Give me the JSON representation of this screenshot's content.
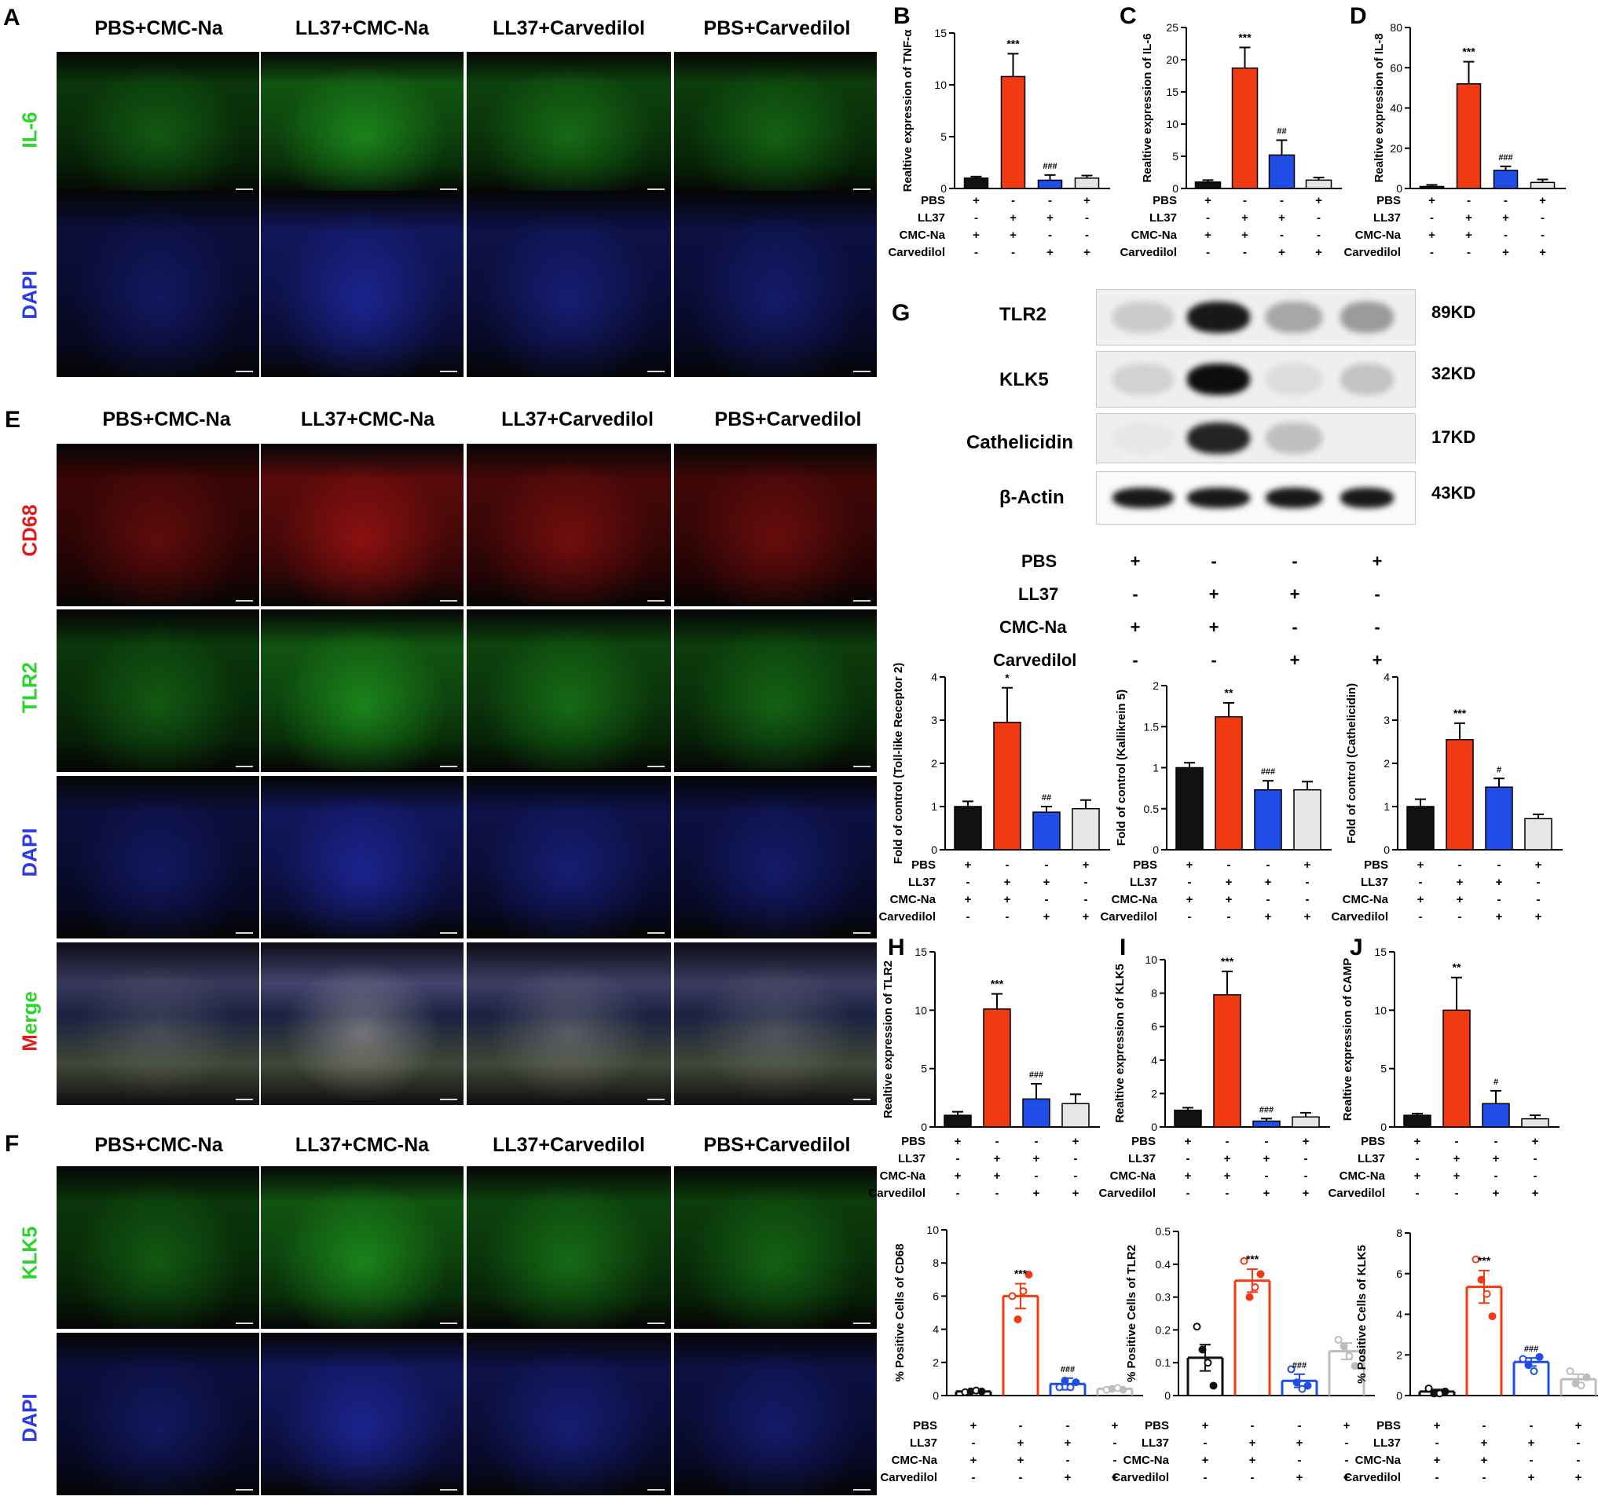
{
  "panel_letters": {
    "A": "A",
    "B": "B",
    "C": "C",
    "D": "D",
    "E": "E",
    "F": "F",
    "G": "G",
    "H": "H",
    "I": "I",
    "J": "J"
  },
  "groups": [
    "PBS+CMC-Na",
    "LL37+CMC-Na",
    "LL37+Carvedilol",
    "PBS+Carvedilol"
  ],
  "row_labels": {
    "A": [
      "IL-6",
      "DAPI"
    ],
    "E": [
      "CD68",
      "TLR2",
      "DAPI",
      "Merge"
    ],
    "F": [
      "KLK5",
      "DAPI"
    ]
  },
  "merge_letters": {
    "first": "M",
    "rest": "erge"
  },
  "colors": {
    "black": "#111111",
    "red": "#f03a12",
    "blue": "#1f4de6",
    "grey": "#e6e6e6",
    "green_stain": "#2ad42a",
    "red_stain": "#e31a1a",
    "blue_stain": "#2b39e6"
  },
  "condition_labels": [
    "PBS",
    "LL37",
    "CMC-Na",
    "Carvedilol"
  ],
  "condition_symbols": [
    [
      "+",
      "-",
      "-",
      "+"
    ],
    [
      "-",
      "+",
      "+",
      "-"
    ],
    [
      "+",
      "+",
      "-",
      "-"
    ],
    [
      "-",
      "-",
      "+",
      "+"
    ]
  ],
  "western_blot": {
    "proteins": [
      "TLR2",
      "KLK5",
      "Cathelicidin",
      "β-Actin"
    ],
    "weights": [
      "89KD",
      "32KD",
      "17KD",
      "43KD"
    ],
    "band_intensity": [
      [
        0.15,
        0.9,
        0.3,
        0.35
      ],
      [
        0.12,
        0.95,
        0.08,
        0.18
      ],
      [
        0.03,
        0.85,
        0.2,
        0.0
      ],
      [
        0.9,
        0.9,
        0.9,
        0.9
      ]
    ]
  },
  "chart_data": [
    {
      "panel": "B",
      "type": "bar",
      "ylabel": "Realtive expression of TNF-α",
      "ylim": [
        0,
        15
      ],
      "yticks": [
        0,
        5,
        10,
        15
      ],
      "categories": [
        "PBS+CMC-Na",
        "LL37+CMC-Na",
        "LL37+Carvedilol",
        "PBS+Carvedilol"
      ],
      "values": [
        1.0,
        10.8,
        0.8,
        1.0
      ],
      "errors": [
        0.15,
        2.2,
        0.5,
        0.25
      ],
      "annotations": [
        "",
        "***",
        "###",
        ""
      ]
    },
    {
      "panel": "C",
      "type": "bar",
      "ylabel": "Realtive expression of IL-6",
      "ylim": [
        0,
        25
      ],
      "yticks": [
        0,
        5,
        10,
        15,
        20,
        25
      ],
      "categories": [
        "PBS+CMC-Na",
        "LL37+CMC-Na",
        "LL37+Carvedilol",
        "PBS+Carvedilol"
      ],
      "values": [
        1.0,
        18.7,
        5.2,
        1.3
      ],
      "errors": [
        0.3,
        3.2,
        2.3,
        0.4
      ],
      "annotations": [
        "",
        "***",
        "##",
        ""
      ]
    },
    {
      "panel": "D",
      "type": "bar",
      "ylabel": "Realtive expression of IL-8",
      "ylim": [
        0,
        80
      ],
      "yticks": [
        0,
        20,
        40,
        60,
        80
      ],
      "categories": [
        "PBS+CMC-Na",
        "LL37+CMC-Na",
        "LL37+Carvedilol",
        "PBS+Carvedilol"
      ],
      "values": [
        1.0,
        52,
        9,
        3
      ],
      "errors": [
        0.8,
        11,
        2,
        1.5
      ],
      "annotations": [
        "",
        "***",
        "###",
        ""
      ]
    },
    {
      "panel": "G1",
      "type": "bar",
      "ylabel": "Fold of control (Toll-like Receptor 2)",
      "ylim": [
        0,
        4
      ],
      "yticks": [
        0,
        1,
        2,
        3,
        4
      ],
      "categories": [
        "PBS+CMC-Na",
        "LL37+CMC-Na",
        "LL37+Carvedilol",
        "PBS+Carvedilol"
      ],
      "values": [
        1.0,
        2.95,
        0.87,
        0.95
      ],
      "errors": [
        0.12,
        0.8,
        0.13,
        0.2
      ],
      "annotations": [
        "",
        "*",
        "##",
        ""
      ]
    },
    {
      "panel": "G2",
      "type": "bar",
      "ylabel": "Fold of control (Kallikrein 5)",
      "ylim": [
        0,
        2.0
      ],
      "yticks": [
        0.0,
        0.5,
        1.0,
        1.5,
        2.0
      ],
      "categories": [
        "PBS+CMC-Na",
        "LL37+CMC-Na",
        "LL37+Carvedilol",
        "PBS+Carvedilol"
      ],
      "values": [
        1.0,
        1.62,
        0.73,
        0.73
      ],
      "errors": [
        0.06,
        0.17,
        0.11,
        0.1
      ],
      "annotations": [
        "",
        "**",
        "###",
        ""
      ]
    },
    {
      "panel": "G3",
      "type": "bar",
      "ylabel": "Fold of control (Cathelicidin)",
      "ylim": [
        0,
        4
      ],
      "yticks": [
        0,
        1,
        2,
        3,
        4
      ],
      "categories": [
        "PBS+CMC-Na",
        "LL37+CMC-Na",
        "LL37+Carvedilol",
        "PBS+Carvedilol"
      ],
      "values": [
        1.0,
        2.55,
        1.45,
        0.72
      ],
      "errors": [
        0.17,
        0.38,
        0.2,
        0.1
      ],
      "annotations": [
        "",
        "***",
        "#",
        ""
      ]
    },
    {
      "panel": "H",
      "type": "bar",
      "ylabel": "Realtive expression of TLR2",
      "ylim": [
        0,
        15
      ],
      "yticks": [
        0,
        5,
        10,
        15
      ],
      "categories": [
        "PBS+CMC-Na",
        "LL37+CMC-Na",
        "LL37+Carvedilol",
        "PBS+Carvedilol"
      ],
      "values": [
        1.0,
        10.1,
        2.4,
        2.0
      ],
      "errors": [
        0.3,
        1.3,
        1.3,
        0.8
      ],
      "annotations": [
        "",
        "***",
        "###",
        ""
      ]
    },
    {
      "panel": "I",
      "type": "bar",
      "ylabel": "Realtive expression of KLK5",
      "ylim": [
        0,
        10
      ],
      "yticks": [
        0,
        2,
        4,
        6,
        8,
        10
      ],
      "categories": [
        "PBS+CMC-Na",
        "LL37+CMC-Na",
        "LL37+Carvedilol",
        "PBS+Carvedilol"
      ],
      "values": [
        1.0,
        7.9,
        0.35,
        0.6
      ],
      "errors": [
        0.15,
        1.4,
        0.15,
        0.25
      ],
      "annotations": [
        "",
        "***",
        "###",
        ""
      ]
    },
    {
      "panel": "J",
      "type": "bar",
      "ylabel": "Realtive expression of CAMP",
      "ylim": [
        0,
        15
      ],
      "yticks": [
        0,
        5,
        10,
        15
      ],
      "categories": [
        "PBS+CMC-Na",
        "LL37+CMC-Na",
        "LL37+Carvedilol",
        "PBS+Carvedilol"
      ],
      "values": [
        1.0,
        10.0,
        2.0,
        0.7
      ],
      "errors": [
        0.15,
        2.8,
        1.1,
        0.3
      ],
      "annotations": [
        "",
        "**",
        "#",
        ""
      ]
    },
    {
      "panel": "F1",
      "type": "scatter_bar",
      "ylabel": "% Positive Cells of CD68",
      "ylim": [
        0,
        10
      ],
      "yticks": [
        0,
        2,
        4,
        6,
        8,
        10
      ],
      "categories": [
        "PBS+CMC-Na",
        "LL37+CMC-Na",
        "LL37+Carvedilol",
        "PBS+Carvedilol"
      ],
      "values": [
        0.25,
        6.0,
        0.7,
        0.4
      ],
      "errors": [
        0.07,
        0.75,
        0.35,
        0.08
      ],
      "points": [
        [
          0.2,
          0.25,
          0.3,
          0.25
        ],
        [
          6.0,
          4.6,
          6.3,
          7.3
        ],
        [
          0.5,
          0.9,
          0.5,
          0.8
        ],
        [
          0.35,
          0.4,
          0.45,
          0.35
        ]
      ],
      "annotations": [
        "",
        "***",
        "###",
        ""
      ]
    },
    {
      "panel": "F2",
      "type": "scatter_bar",
      "ylabel": "% Positive Cells of TLR2",
      "ylim": [
        0,
        0.5
      ],
      "yticks": [
        0.0,
        0.1,
        0.2,
        0.3,
        0.4,
        0.5
      ],
      "categories": [
        "PBS+CMC-Na",
        "LL37+CMC-Na",
        "LL37+Carvedilol",
        "PBS+Carvedilol"
      ],
      "values": [
        0.115,
        0.35,
        0.045,
        0.135
      ],
      "errors": [
        0.04,
        0.035,
        0.02,
        0.025
      ],
      "points": [
        [
          0.21,
          0.14,
          0.1,
          0.03
        ],
        [
          0.41,
          0.3,
          0.33,
          0.37
        ],
        [
          0.08,
          0.04,
          0.02,
          0.03
        ],
        [
          0.17,
          0.15,
          0.12,
          0.09
        ]
      ],
      "annotations": [
        "",
        "***",
        "###",
        ""
      ]
    },
    {
      "panel": "F3",
      "type": "scatter_bar",
      "ylabel": "% Positive Cells of KLK5",
      "ylim": [
        0,
        8
      ],
      "yticks": [
        0,
        2,
        4,
        6,
        8
      ],
      "categories": [
        "PBS+CMC-Na",
        "LL37+CMC-Na",
        "LL37+Carvedilol",
        "PBS+Carvedilol"
      ],
      "values": [
        0.2,
        5.35,
        1.65,
        0.8
      ],
      "errors": [
        0.1,
        0.8,
        0.2,
        0.25
      ],
      "points": [
        [
          0.35,
          0.1,
          0.1,
          0.2
        ],
        [
          6.7,
          5.7,
          5.0,
          3.9
        ],
        [
          1.8,
          1.5,
          1.2,
          1.9
        ],
        [
          1.2,
          0.6,
          0.5,
          0.9
        ]
      ],
      "annotations": [
        "",
        "***",
        "###",
        ""
      ]
    }
  ]
}
